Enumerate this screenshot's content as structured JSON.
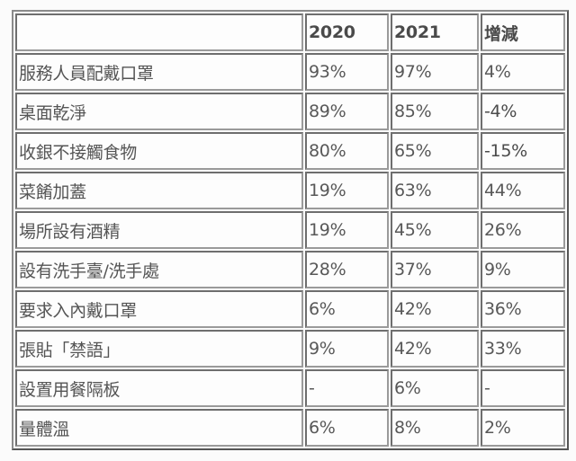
{
  "table": {
    "headers": [
      "",
      "2020",
      "2021",
      "增減"
    ],
    "rows": [
      {
        "item": "服務人員配戴口罩",
        "y2020": "93%",
        "y2021": "97%",
        "change": "4%",
        "change_bold": false
      },
      {
        "item": "桌面乾淨",
        "y2020": "89%",
        "y2021": "85%",
        "change": "-4%",
        "change_bold": true
      },
      {
        "item": "收銀不接觸食物",
        "y2020": "80%",
        "y2021": "65%",
        "change": "-15%",
        "change_bold": true
      },
      {
        "item": "菜餚加蓋",
        "y2020": "19%",
        "y2021": "63%",
        "change": "44%",
        "change_bold": false
      },
      {
        "item": "場所設有酒精",
        "y2020": "19%",
        "y2021": "45%",
        "change": "26%",
        "change_bold": false
      },
      {
        "item": "設有洗手臺/洗手處",
        "y2020": "28%",
        "y2021": "37%",
        "change": "9%",
        "change_bold": false
      },
      {
        "item": "要求入內戴口罩",
        "y2020": "6%",
        "y2021": "42%",
        "change": "36%",
        "change_bold": false
      },
      {
        "item": "張貼「禁語」",
        "y2020": "9%",
        "y2021": "42%",
        "change": "33%",
        "change_bold": false
      },
      {
        "item": "設置用餐隔板",
        "y2020": "-",
        "y2021": "6%",
        "change": "-",
        "change_bold": false
      },
      {
        "item": "量體溫",
        "y2020": "6%",
        "y2021": "8%",
        "change": "2%",
        "change_bold": false
      }
    ]
  }
}
